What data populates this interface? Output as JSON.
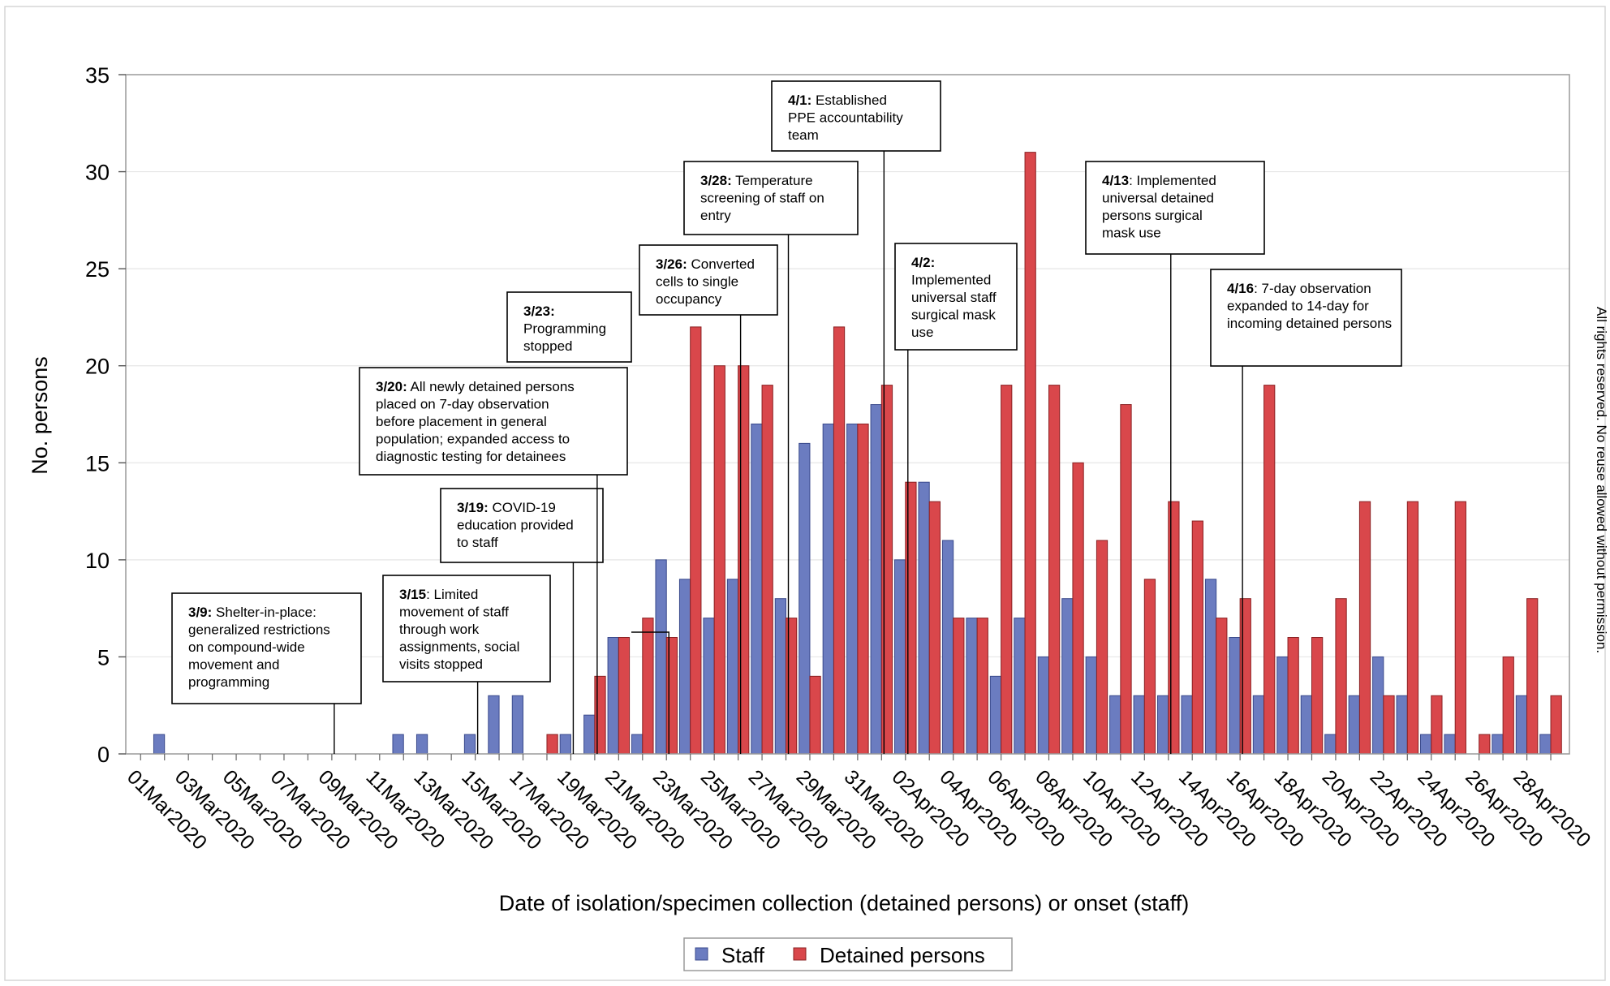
{
  "chart_data": {
    "type": "bar",
    "xlabel": "Date of isolation/specimen collection (detained persons) or onset (staff)",
    "ylabel": "No. persons",
    "ylim": [
      0,
      35
    ],
    "yticks": [
      0,
      5,
      10,
      15,
      20,
      25,
      30,
      35
    ],
    "grid": true,
    "legend_position": "bottom-center",
    "colors": {
      "Staff": "#6b7cc0",
      "Detained persons": "#d9474b"
    },
    "categories": [
      "01Mar2020",
      "02Mar2020",
      "03Mar2020",
      "04Mar2020",
      "05Mar2020",
      "06Mar2020",
      "07Mar2020",
      "08Mar2020",
      "09Mar2020",
      "10Mar2020",
      "11Mar2020",
      "12Mar2020",
      "13Mar2020",
      "14Mar2020",
      "15Mar2020",
      "16Mar2020",
      "17Mar2020",
      "18Mar2020",
      "19Mar2020",
      "20Mar2020",
      "21Mar2020",
      "22Mar2020",
      "23Mar2020",
      "24Mar2020",
      "25Mar2020",
      "26Mar2020",
      "27Mar2020",
      "28Mar2020",
      "29Mar2020",
      "30Mar2020",
      "31Mar2020",
      "01Apr2020",
      "02Apr2020",
      "03Apr2020",
      "04Apr2020",
      "05Apr2020",
      "06Apr2020",
      "07Apr2020",
      "08Apr2020",
      "09Apr2020",
      "10Apr2020",
      "11Apr2020",
      "12Apr2020",
      "13Apr2020",
      "14Apr2020",
      "15Apr2020",
      "16Apr2020",
      "17Apr2020",
      "18Apr2020",
      "19Apr2020",
      "20Apr2020",
      "21Apr2020",
      "22Apr2020",
      "23Apr2020",
      "24Apr2020",
      "25Apr2020",
      "26Apr2020",
      "27Apr2020",
      "28Apr2020",
      "29Apr2020"
    ],
    "tick_labels": [
      "01Mar2020",
      "03Mar2020",
      "05Mar2020",
      "07Mar2020",
      "09Mar2020",
      "11Mar2020",
      "13Mar2020",
      "15Mar2020",
      "17Mar2020",
      "19Mar2020",
      "21Mar2020",
      "23Mar2020",
      "25Mar2020",
      "27Mar2020",
      "29Mar2020",
      "31Mar2020",
      "02Apr2020",
      "04Apr2020",
      "06Apr2020",
      "08Apr2020",
      "10Apr2020",
      "12Apr2020",
      "14Apr2020",
      "16Apr2020",
      "18Apr2020",
      "20Apr2020",
      "22Apr2020",
      "24Apr2020",
      "26Apr2020",
      "28Apr2020"
    ],
    "series": [
      {
        "name": "Staff",
        "values": [
          0,
          1,
          0,
          0,
          0,
          0,
          0,
          0,
          0,
          0,
          0,
          1,
          1,
          0,
          1,
          3,
          3,
          0,
          1,
          2,
          6,
          1,
          10,
          9,
          7,
          9,
          17,
          8,
          16,
          17,
          17,
          18,
          10,
          14,
          11,
          7,
          4,
          7,
          5,
          8,
          5,
          3,
          3,
          3,
          3,
          9,
          6,
          3,
          5,
          3,
          1,
          3,
          5,
          3,
          1,
          1,
          0,
          1,
          3,
          1
        ]
      },
      {
        "name": "Detained persons",
        "values": [
          0,
          0,
          0,
          0,
          0,
          0,
          0,
          0,
          0,
          0,
          0,
          0,
          0,
          0,
          0,
          0,
          0,
          1,
          0,
          4,
          6,
          7,
          6,
          22,
          20,
          20,
          19,
          7,
          4,
          22,
          17,
          19,
          14,
          13,
          7,
          7,
          19,
          31,
          19,
          15,
          11,
          18,
          9,
          13,
          12,
          7,
          8,
          19,
          6,
          6,
          8,
          13,
          3,
          13,
          3,
          13,
          1,
          5,
          8,
          3
        ]
      }
    ],
    "annotations": [
      {
        "bold": "3/9:",
        "lines": [
          " Shelter-in-place:",
          "generalized restrictions",
          "on compound-wide",
          "movement and",
          "programming"
        ]
      },
      {
        "bold": "3/15",
        "lines": [
          ": Limited",
          "movement of staff",
          "through work",
          "assignments, social",
          "visits stopped"
        ]
      },
      {
        "bold": "3/19:",
        "lines": [
          " COVID-19",
          "education provided",
          "to staff"
        ]
      },
      {
        "bold": "3/20:",
        "lines": [
          " All newly detained persons",
          "placed on 7-day observation",
          "before placement in general",
          "population; expanded access to",
          "diagnostic testing for detainees"
        ]
      },
      {
        "bold": "3/23:",
        "lines": [
          "",
          "Programming",
          "stopped"
        ]
      },
      {
        "bold": "3/26:",
        "lines": [
          " Converted",
          "cells to single",
          "occupancy"
        ]
      },
      {
        "bold": "3/28:",
        "lines": [
          " Temperature",
          "screening of staff on",
          "entry"
        ]
      },
      {
        "bold": "4/1:",
        "lines": [
          " Established",
          "PPE accountability",
          "team"
        ]
      },
      {
        "bold": "4/2:",
        "lines": [
          "",
          "Implemented",
          "universal staff",
          "surgical mask",
          "use"
        ]
      },
      {
        "bold": "4/13",
        "lines": [
          ": Implemented",
          "universal detained",
          "persons surgical",
          "mask use"
        ]
      },
      {
        "bold": "4/16",
        "lines": [
          ": 7-day observation",
          "expanded to 14-day for",
          "incoming detained persons"
        ]
      }
    ]
  },
  "copyright_note": "All rights reserved. No reuse allowed without permission."
}
